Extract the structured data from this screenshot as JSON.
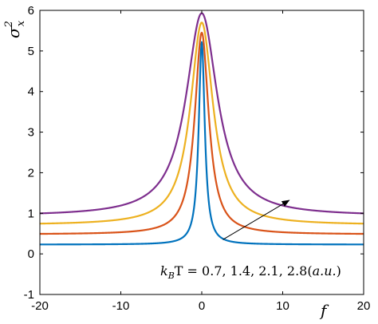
{
  "chart_data": {
    "type": "line",
    "title": "",
    "xlabel": "f",
    "ylabel_base": "σ",
    "ylabel_sup": "2",
    "ylabel_sub": "x",
    "xlim": [
      -20,
      20
    ],
    "ylim": [
      -1,
      6
    ],
    "xticks": [
      -20,
      -10,
      0,
      10,
      20
    ],
    "xtick_labels": [
      "-20",
      "-10",
      "0",
      "10",
      "20"
    ],
    "yticks": [
      -1,
      0,
      1,
      2,
      3,
      4,
      5,
      6
    ],
    "ytick_labels": [
      "-1",
      "0",
      "1",
      "2",
      "3",
      "4",
      "5",
      "6"
    ],
    "grid": false,
    "series": [
      {
        "color": "#0072BD",
        "baseline": 0.23,
        "peak": 5.22,
        "width": 0.45
      },
      {
        "color": "#D95319",
        "baseline": 0.48,
        "peak": 5.45,
        "width": 1.05
      },
      {
        "color": "#EDB120",
        "baseline": 0.71,
        "peak": 5.7,
        "width": 1.7
      },
      {
        "color": "#7E2F8E",
        "baseline": 0.93,
        "peak": 5.93,
        "width": 2.35
      }
    ],
    "annotation": {
      "text": "k_BT = 0.7, 1.4, 2.1, 2.8(a.u.)",
      "parts": {
        "k": "k",
        "sub": "B",
        "rest": "T = 0.7, 1.4, 2.1, 2.8(",
        "au": "a.u.",
        "close": ")"
      },
      "arrow_from": [
        2.6,
        0.35
      ],
      "arrow_to": [
        10.8,
        1.32
      ]
    }
  }
}
